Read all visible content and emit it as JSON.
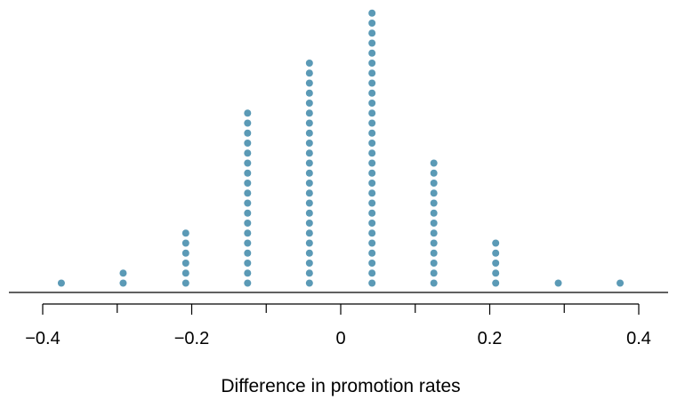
{
  "chart_data": {
    "type": "scatter",
    "title": "",
    "xlabel": "Difference in promotion rates",
    "ylabel": "",
    "xlim": [
      -0.4,
      0.4
    ],
    "major_ticks": [
      -0.4,
      -0.2,
      0,
      0.2,
      0.4
    ],
    "tick_labels": [
      "−0.4",
      "−0.2",
      "0",
      "0.2",
      "0.4"
    ],
    "minor_ticks": [
      -0.3,
      -0.1,
      0.1,
      0.3
    ],
    "dot_color": "#5b9ab6",
    "series": [
      {
        "x": [
          -0.375,
          -0.292,
          -0.208,
          -0.125,
          -0.042,
          0.042,
          0.125,
          0.208,
          0.292,
          0.375
        ],
        "counts": [
          1,
          2,
          6,
          18,
          23,
          28,
          13,
          5,
          1,
          1
        ]
      }
    ]
  }
}
